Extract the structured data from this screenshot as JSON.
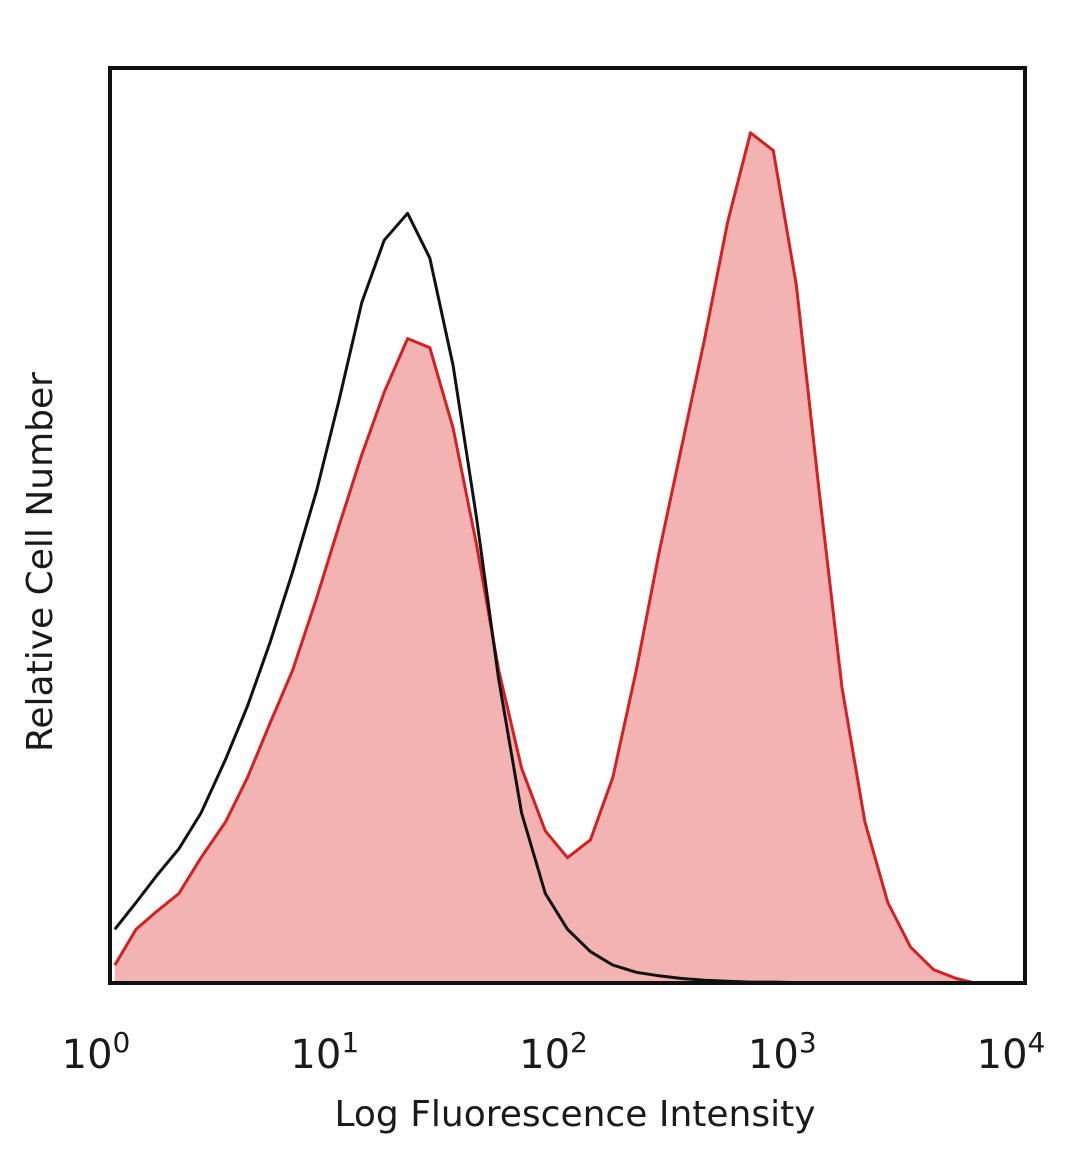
{
  "chart_data": {
    "type": "area",
    "title": "",
    "xlabel": "Log Fluorescence Intensity",
    "ylabel": "Relative Cell Number",
    "xscale": "log",
    "xlim": [
      1,
      10000
    ],
    "ylim": [
      0,
      1
    ],
    "grid": false,
    "legend": "none",
    "x_ticks": [
      {
        "value": 1,
        "base": "10",
        "exp": "0"
      },
      {
        "value": 10,
        "base": "10",
        "exp": "1"
      },
      {
        "value": 100,
        "base": "10",
        "exp": "2"
      },
      {
        "value": 1000,
        "base": "10",
        "exp": "3"
      },
      {
        "value": 10000,
        "base": "10",
        "exp": "4"
      }
    ],
    "series": [
      {
        "style": "filled",
        "color": "#d42020",
        "fill": "#f4b3b3",
        "x": [
          1.05,
          1.3,
          1.6,
          2.0,
          2.5,
          3.2,
          4.0,
          5.0,
          6.3,
          8.0,
          10,
          12.6,
          15.8,
          20,
          25,
          31.6,
          40,
          50,
          63,
          80,
          100,
          126,
          158,
          200,
          251,
          316,
          398,
          501,
          631,
          794,
          1000,
          1259,
          1585,
          1995,
          2512,
          3162,
          3981,
          5012,
          6000
        ],
        "y": [
          0.02,
          0.06,
          0.08,
          0.1,
          0.14,
          0.18,
          0.23,
          0.29,
          0.35,
          0.43,
          0.51,
          0.59,
          0.66,
          0.72,
          0.71,
          0.62,
          0.49,
          0.35,
          0.24,
          0.17,
          0.14,
          0.16,
          0.23,
          0.35,
          0.48,
          0.6,
          0.72,
          0.85,
          0.95,
          0.93,
          0.78,
          0.55,
          0.33,
          0.18,
          0.09,
          0.04,
          0.015,
          0.005,
          0
        ]
      },
      {
        "style": "line",
        "color": "#111111",
        "x": [
          1.05,
          1.3,
          1.6,
          2.0,
          2.5,
          3.2,
          4.0,
          5.0,
          6.3,
          8.0,
          10,
          12.6,
          15.8,
          20,
          25,
          31.6,
          40,
          50,
          63,
          80,
          100,
          126,
          158,
          200,
          251,
          316,
          398,
          501,
          631,
          794,
          1000,
          1259
        ],
        "y": [
          0.06,
          0.09,
          0.12,
          0.15,
          0.19,
          0.25,
          0.31,
          0.38,
          0.46,
          0.55,
          0.65,
          0.76,
          0.83,
          0.86,
          0.81,
          0.69,
          0.52,
          0.34,
          0.19,
          0.1,
          0.06,
          0.035,
          0.02,
          0.012,
          0.008,
          0.005,
          0.003,
          0.002,
          0.001,
          0.001,
          0.0005,
          0
        ]
      }
    ]
  }
}
